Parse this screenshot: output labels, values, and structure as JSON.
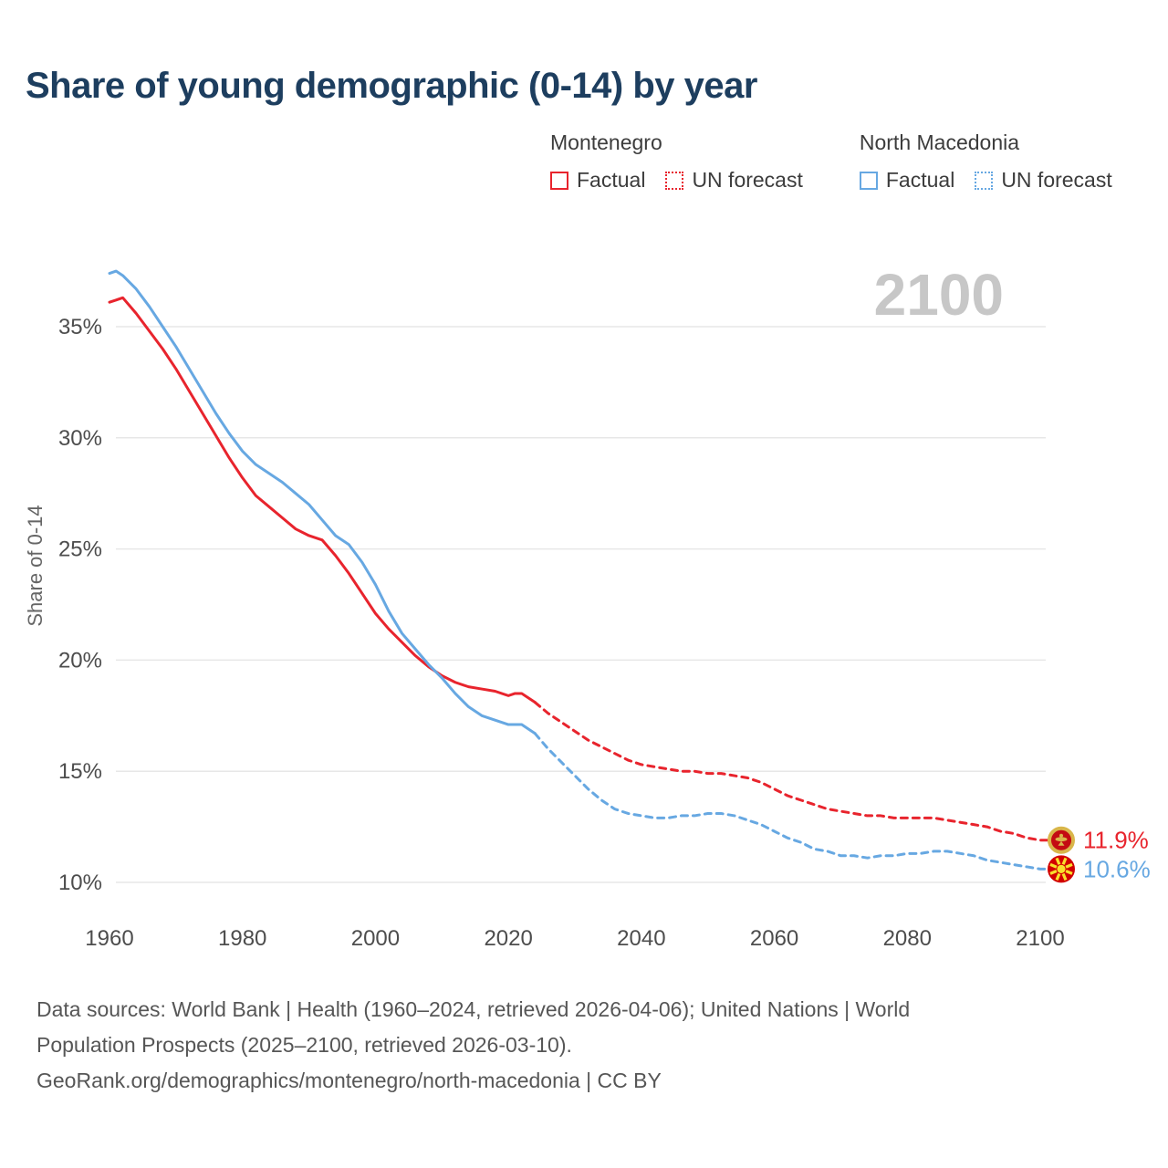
{
  "title": "Share of young demographic (0-14) by year",
  "watermark": "2100",
  "legend": {
    "groups": [
      {
        "name": "Montenegro",
        "color": "#e8242d",
        "items": [
          {
            "label": "Factual",
            "line_style": "solid"
          },
          {
            "label": "UN forecast",
            "line_style": "dotted"
          }
        ]
      },
      {
        "name": "North Macedonia",
        "color": "#67a8e2",
        "items": [
          {
            "label": "Factual",
            "line_style": "solid"
          },
          {
            "label": "UN forecast",
            "line_style": "dotted"
          }
        ]
      }
    ]
  },
  "chart_data": {
    "type": "line",
    "title": "Share of young demographic (0-14) by year",
    "xlabel": "",
    "ylabel": "Share of 0-14",
    "grid": "horizontal",
    "legend_position": "top-right",
    "x_ticks": [
      1960,
      1980,
      2000,
      2020,
      2040,
      2060,
      2080,
      2100
    ],
    "y_ticks": [
      10,
      15,
      20,
      25,
      30,
      35
    ],
    "y_tick_suffix": "%",
    "xlim": [
      1960,
      2100
    ],
    "ylim": [
      8.5,
      38.5
    ],
    "series": [
      {
        "name": "Montenegro — Factual",
        "color": "#e8242d",
        "dash": false,
        "x": [
          1960,
          1961,
          1962,
          1964,
          1966,
          1968,
          1970,
          1972,
          1974,
          1976,
          1978,
          1980,
          1982,
          1984,
          1986,
          1988,
          1990,
          1992,
          1994,
          1996,
          1998,
          2000,
          2002,
          2004,
          2006,
          2008,
          2010,
          2012,
          2014,
          2016,
          2018,
          2020,
          2021,
          2022,
          2024
        ],
        "values": [
          36.1,
          36.2,
          36.3,
          35.6,
          34.8,
          34.0,
          33.1,
          32.1,
          31.1,
          30.1,
          29.1,
          28.2,
          27.4,
          26.9,
          26.4,
          25.9,
          25.6,
          25.4,
          24.7,
          23.9,
          23.0,
          22.1,
          21.4,
          20.8,
          20.2,
          19.7,
          19.3,
          19.0,
          18.8,
          18.7,
          18.6,
          18.4,
          18.5,
          18.5,
          18.1
        ]
      },
      {
        "name": "Montenegro — UN forecast",
        "color": "#e8242d",
        "dash": true,
        "x": [
          2024,
          2026,
          2028,
          2030,
          2032,
          2034,
          2036,
          2038,
          2040,
          2042,
          2044,
          2046,
          2048,
          2050,
          2052,
          2054,
          2056,
          2058,
          2060,
          2062,
          2064,
          2066,
          2068,
          2070,
          2072,
          2074,
          2076,
          2078,
          2080,
          2082,
          2084,
          2086,
          2088,
          2090,
          2092,
          2094,
          2096,
          2098,
          2100
        ],
        "values": [
          18.1,
          17.6,
          17.2,
          16.8,
          16.4,
          16.1,
          15.8,
          15.5,
          15.3,
          15.2,
          15.1,
          15.0,
          15.0,
          14.9,
          14.9,
          14.8,
          14.7,
          14.5,
          14.2,
          13.9,
          13.7,
          13.5,
          13.3,
          13.2,
          13.1,
          13.0,
          13.0,
          12.9,
          12.9,
          12.9,
          12.9,
          12.8,
          12.7,
          12.6,
          12.5,
          12.3,
          12.2,
          12.0,
          11.9
        ]
      },
      {
        "name": "North Macedonia — Factual",
        "color": "#67a8e2",
        "dash": false,
        "x": [
          1960,
          1961,
          1962,
          1964,
          1966,
          1968,
          1970,
          1972,
          1974,
          1976,
          1978,
          1980,
          1982,
          1984,
          1986,
          1988,
          1990,
          1992,
          1994,
          1996,
          1998,
          2000,
          2002,
          2004,
          2006,
          2008,
          2010,
          2012,
          2014,
          2016,
          2018,
          2020,
          2022,
          2024
        ],
        "values": [
          37.4,
          37.5,
          37.3,
          36.7,
          35.9,
          35.0,
          34.1,
          33.1,
          32.1,
          31.1,
          30.2,
          29.4,
          28.8,
          28.4,
          28.0,
          27.5,
          27.0,
          26.3,
          25.6,
          25.2,
          24.4,
          23.4,
          22.2,
          21.2,
          20.5,
          19.8,
          19.2,
          18.5,
          17.9,
          17.5,
          17.3,
          17.1,
          17.1,
          16.7
        ]
      },
      {
        "name": "North Macedonia — UN forecast",
        "color": "#67a8e2",
        "dash": true,
        "x": [
          2024,
          2026,
          2028,
          2030,
          2032,
          2034,
          2036,
          2038,
          2040,
          2042,
          2044,
          2046,
          2048,
          2050,
          2052,
          2054,
          2056,
          2058,
          2060,
          2062,
          2064,
          2066,
          2068,
          2070,
          2072,
          2074,
          2076,
          2078,
          2080,
          2082,
          2084,
          2086,
          2088,
          2090,
          2092,
          2094,
          2096,
          2098,
          2100
        ],
        "values": [
          16.7,
          16.0,
          15.4,
          14.8,
          14.2,
          13.7,
          13.3,
          13.1,
          13.0,
          12.9,
          12.9,
          13.0,
          13.0,
          13.1,
          13.1,
          13.0,
          12.8,
          12.6,
          12.3,
          12.0,
          11.8,
          11.5,
          11.4,
          11.2,
          11.2,
          11.1,
          11.2,
          11.2,
          11.3,
          11.3,
          11.4,
          11.4,
          11.3,
          11.2,
          11.0,
          10.9,
          10.8,
          10.7,
          10.6
        ]
      }
    ],
    "end_labels": [
      {
        "text": "11.9%",
        "value": 11.9,
        "color": "#e8242d",
        "flag": "montenegro"
      },
      {
        "text": "10.6%",
        "value": 10.6,
        "color": "#67a8e2",
        "flag": "north-macedonia"
      }
    ]
  },
  "footer": {
    "line1": "Data sources: World Bank | Health (1960–2024, retrieved 2026-04-06); United Nations | World",
    "line2": "Population Prospects (2025–2100, retrieved 2026-03-10).",
    "line3": "GeoRank.org/demographics/montenegro/north-macedonia | CC BY"
  }
}
